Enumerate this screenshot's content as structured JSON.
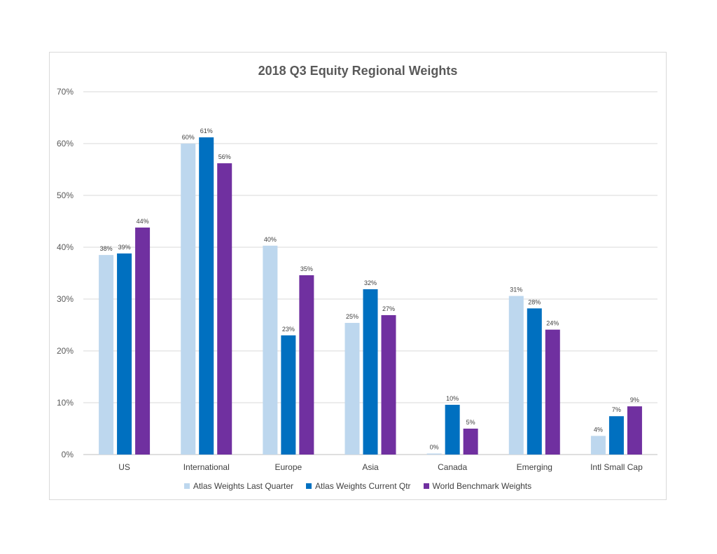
{
  "chart_data": {
    "type": "bar",
    "title": "2018 Q3 Equity Regional Weights",
    "categories": [
      "US",
      "International",
      "Europe",
      "Asia",
      "Canada",
      "Emerging",
      "Intl Small Cap"
    ],
    "series": [
      {
        "name": "Atlas Weights Last Quarter",
        "color": "#bdd7ee",
        "values": [
          38.5,
          60.0,
          40.3,
          25.4,
          0.2,
          30.6,
          3.6
        ],
        "labels": [
          "38%",
          "60%",
          "40%",
          "25%",
          "0%",
          "31%",
          "4%"
        ]
      },
      {
        "name": "Atlas Weights Current Qtr",
        "color": "#0070c0",
        "values": [
          38.8,
          61.2,
          23.0,
          31.9,
          9.6,
          28.2,
          7.4
        ],
        "labels": [
          "39%",
          "61%",
          "23%",
          "32%",
          "10%",
          "28%",
          "7%"
        ]
      },
      {
        "name": "World Benchmark Weights",
        "color": "#7030a0",
        "values": [
          43.8,
          56.2,
          34.6,
          26.9,
          5.0,
          24.1,
          9.3
        ],
        "labels": [
          "44%",
          "56%",
          "35%",
          "27%",
          "5%",
          "24%",
          "9%"
        ]
      }
    ],
    "ylim": [
      0,
      70
    ],
    "yticks": [
      "0%",
      "10%",
      "20%",
      "30%",
      "40%",
      "50%",
      "60%",
      "70%"
    ],
    "ytick_values": [
      0,
      10,
      20,
      30,
      40,
      50,
      60,
      70
    ],
    "grid": true,
    "legend_position": "bottom"
  }
}
